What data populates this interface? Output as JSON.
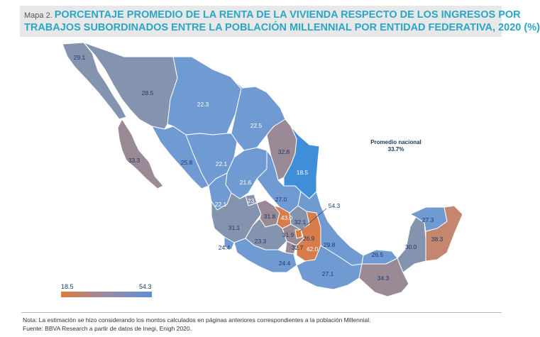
{
  "title": {
    "label": "Mapa 2.",
    "line1": "PORCENTAJE PROMEDIO DE LA RENTA DE LA VIVIENDA RESPECTO DE LOS INGRESOS POR",
    "line2": "TRABAJOS SUBORDINADOS ENTRE LA POBLACIÓN MILLENNIAL POR ENTIDAD FEDERATIVA, 2020 (%)"
  },
  "national_average": {
    "label": "Promedio nacional",
    "value": "33.7%"
  },
  "legend": {
    "min": "18.5",
    "max": "54.3"
  },
  "colors": {
    "high": "#e07a3c",
    "mid": "#9a8aa6",
    "low": "#5a8fd8",
    "base": "#8494ae",
    "light_blue": "#6f9bd2",
    "bright": "#3f8fd8"
  },
  "states": [
    {
      "id": "bc",
      "value": "29.1"
    },
    {
      "id": "son",
      "value": "28.5"
    },
    {
      "id": "chih",
      "value": "22.3"
    },
    {
      "id": "bcs",
      "value": "33.3"
    },
    {
      "id": "coah",
      "value": "22.5"
    },
    {
      "id": "nl",
      "value": "32.8"
    },
    {
      "id": "tamps",
      "value": "18.5"
    },
    {
      "id": "sin",
      "value": "25.8"
    },
    {
      "id": "dgo",
      "value": "22.1"
    },
    {
      "id": "zac",
      "value": "21.6"
    },
    {
      "id": "nay",
      "value": "22.1"
    },
    {
      "id": "ags",
      "value": "23.6"
    },
    {
      "id": "slp",
      "value": "27.0"
    },
    {
      "id": "jal",
      "value": "31.1"
    },
    {
      "id": "gto",
      "value": "31.8"
    },
    {
      "id": "qro",
      "value": "43.0"
    },
    {
      "id": "hgo",
      "value": "32.1"
    },
    {
      "id": "cdmx",
      "value": "54.3"
    },
    {
      "id": "mex",
      "value": "26.9"
    },
    {
      "id": "mich",
      "value": "31.9"
    },
    {
      "id": "col",
      "value": "24.4"
    },
    {
      "id": "mor",
      "value": "32.7"
    },
    {
      "id": "pue",
      "value": "42.0"
    },
    {
      "id": "tlax",
      "value": "29.8"
    },
    {
      "id": "gro",
      "value": "23.3"
    },
    {
      "id": "oax",
      "value": "24.4"
    },
    {
      "id": "ver",
      "value": "27.1"
    },
    {
      "id": "tab",
      "value": "26.5"
    },
    {
      "id": "chis",
      "value": "34.3"
    },
    {
      "id": "camp",
      "value": "30.0"
    },
    {
      "id": "yuc",
      "value": "27.3"
    },
    {
      "id": "qroo",
      "value": "38.3"
    }
  ],
  "notes": {
    "note": "Nota: La estimación se hizo considerando los montos calculados en páginas anteriores correspondientes a la población Millennial.",
    "source": "Fuente: BBVA Research a partir de datos de Inegi, Enigh 2020."
  }
}
